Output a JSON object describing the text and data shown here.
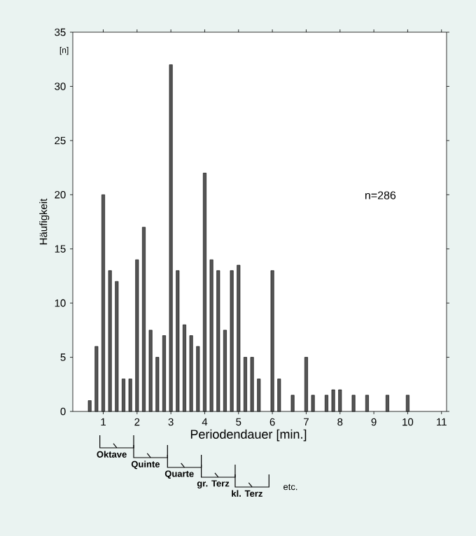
{
  "chart_data": {
    "type": "bar",
    "ylabel": "Häufigkeit",
    "xlabel": "Periodendauer [min.]",
    "x": [
      0.6,
      0.8,
      1.0,
      1.2,
      1.4,
      1.6,
      1.8,
      2.0,
      2.2,
      2.4,
      2.6,
      2.8,
      3.0,
      3.2,
      3.4,
      3.6,
      3.8,
      4.0,
      4.2,
      4.4,
      4.6,
      4.8,
      5.0,
      5.2,
      5.4,
      5.6,
      6.0,
      6.2,
      6.6,
      7.0,
      7.2,
      7.6,
      7.8,
      8.0,
      8.4,
      8.8,
      9.4,
      10.0
    ],
    "values": [
      1,
      6,
      20,
      13,
      12,
      3,
      3,
      14,
      17,
      7.5,
      5,
      7,
      32,
      13,
      8,
      7,
      6,
      22,
      14,
      13,
      7.5,
      13,
      13.5,
      5,
      5,
      3,
      13,
      3,
      1.5,
      5,
      1.5,
      1.5,
      2,
      2,
      1.5,
      1.5,
      1.5,
      1.5
    ],
    "color": "#555555",
    "xlim": [
      0.1,
      11.15
    ],
    "xticks": [
      1,
      2,
      3,
      4,
      5,
      6,
      7,
      8,
      9,
      10,
      11
    ],
    "ylim": [
      0,
      35
    ],
    "yticks": [
      0,
      5,
      10,
      15,
      20,
      25,
      30,
      35
    ],
    "grid": false,
    "annotations": [
      "[n]",
      "n=286",
      "Oktave",
      "Quinte",
      "Quarte",
      "gr. Terz",
      "kl. Terz",
      "etc."
    ]
  }
}
